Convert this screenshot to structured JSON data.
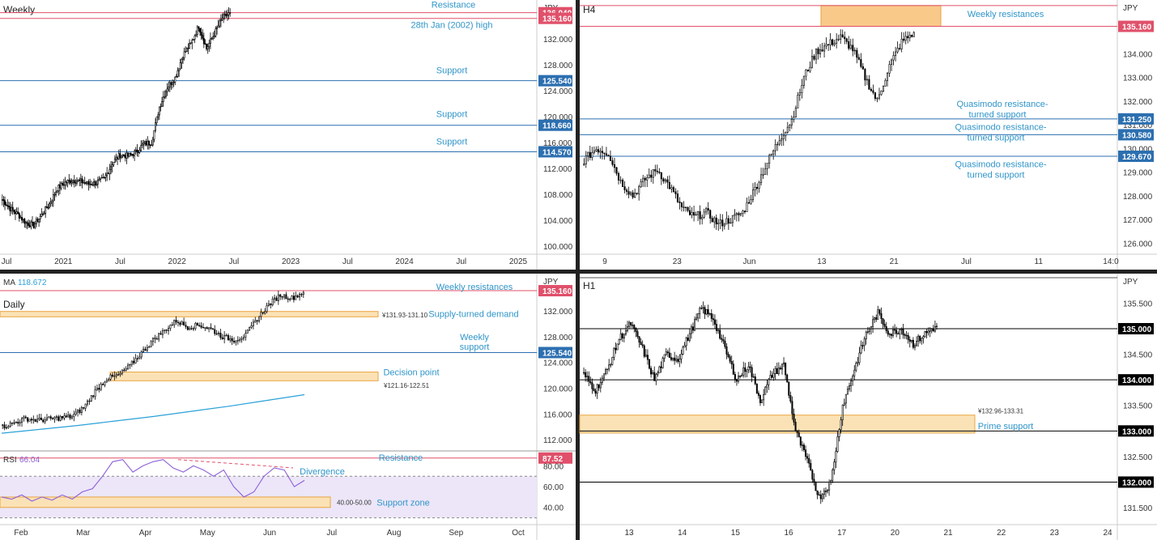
{
  "colors": {
    "up": "#ffffff",
    "down": "#000000",
    "wick": "#000000",
    "support": "#2c6fb0",
    "resistance": "#e0506a",
    "label": "#2f95c9",
    "zone_fill": "#fbe2b6",
    "zone_stroke": "#e9a440",
    "zone_fill_dark": "#f9c98a",
    "ma": "#29a0d8",
    "rsi": "#8c5fd6",
    "rsi_band": "#ece6f8",
    "axis_text": "#333333",
    "divider": "#222222"
  },
  "chart_data": [
    {
      "id": "weekly",
      "type": "candlestick",
      "title": "Weekly",
      "currency": "JPY",
      "ylim": [
        99,
        137
      ],
      "y_ticks": [
        "132.000",
        "128.000",
        "124.000",
        "120.000",
        "116.000",
        "112.000",
        "108.000",
        "104.000",
        "100.000"
      ],
      "x_ticks": [
        "Jul",
        "2021",
        "Jul",
        "2022",
        "Jul",
        "2023",
        "Jul",
        "2024",
        "Jul",
        "2025"
      ],
      "price_path": [
        107.2,
        105.8,
        104.9,
        103.6,
        103.2,
        104.8,
        106.5,
        108.9,
        109.8,
        110.2,
        110.0,
        109.6,
        109.8,
        110.4,
        112.8,
        114.1,
        113.9,
        114.5,
        115.8,
        116.0,
        121.5,
        124.5,
        126.0,
        129.5,
        131.2,
        134.0,
        130.5,
        132.8,
        135.2,
        136.0
      ],
      "price_labels": [
        {
          "value": 136.04,
          "text": "136.040",
          "kind": "resistance"
        },
        {
          "value": 135.16,
          "text": "135.160",
          "kind": "resistance"
        },
        {
          "value": 125.54,
          "text": "125.540",
          "kind": "support"
        },
        {
          "value": 118.66,
          "text": "118.660",
          "kind": "support"
        },
        {
          "value": 114.57,
          "text": "114.570",
          "kind": "support"
        }
      ],
      "annotations": [
        {
          "text": "Resistance",
          "value": 136.04
        },
        {
          "text": "28th Jan (2002) high",
          "value": 135.16
        },
        {
          "text": "Support",
          "value": 125.54
        },
        {
          "text": "Support",
          "value": 118.66
        },
        {
          "text": "Support",
          "value": 114.57
        }
      ]
    },
    {
      "id": "h4",
      "type": "candlestick",
      "title": "H4",
      "currency": "JPY",
      "ylim": [
        125.6,
        136.0
      ],
      "y_ticks": [
        "134.000",
        "133.000",
        "132.000",
        "131.000",
        "130.000",
        "129.000",
        "128.000",
        "127.000",
        "126.000"
      ],
      "x_ticks": [
        "9",
        "23",
        "Jun",
        "13",
        "21",
        "Jul",
        "11",
        "14:0"
      ],
      "price_path": [
        129.5,
        130.0,
        129.8,
        128.6,
        128.0,
        128.7,
        129.1,
        128.4,
        127.5,
        127.1,
        127.3,
        126.8,
        127.0,
        127.3,
        128.3,
        129.4,
        130.4,
        131.2,
        133.0,
        134.1,
        134.4,
        134.7,
        134.2,
        133.0,
        132.0,
        133.5,
        134.5,
        134.9
      ],
      "price_labels": [
        {
          "value": 135.16,
          "text": "135.160",
          "kind": "resistance"
        },
        {
          "value": 131.25,
          "text": "131.250",
          "kind": "support"
        },
        {
          "value": 130.58,
          "text": "130.580",
          "kind": "support"
        },
        {
          "value": 129.67,
          "text": "129.670",
          "kind": "support"
        }
      ],
      "zones": [
        {
          "from": 135.16,
          "to": 136.04
        }
      ],
      "annotations": [
        {
          "text": "Weekly resistances",
          "value": 135.7
        },
        {
          "text": "Quasimodo resistance-",
          "value": 131.9
        },
        {
          "text": "turned support",
          "value": 131.45
        },
        {
          "text": "Quasimodo resistance-",
          "value": 130.92
        },
        {
          "text": "turned support",
          "value": 130.47
        },
        {
          "text": "Quasimodo resistance-",
          "value": 129.35
        },
        {
          "text": "turned support",
          "value": 128.9
        }
      ]
    },
    {
      "id": "daily",
      "type": "candlestick",
      "title": "Daily",
      "currency": "JPY",
      "ma_label": "MA",
      "ma_value": "118.672",
      "ylim": [
        110.5,
        136.8
      ],
      "y_ticks": [
        "132.000",
        "128.000",
        "124.000",
        "120.000",
        "116.000",
        "112.000"
      ],
      "x_ticks": [
        "Feb",
        "Mar",
        "Apr",
        "May",
        "Jun",
        "Jul",
        "Aug",
        "Sep",
        "Oct"
      ],
      "price_path": [
        114.0,
        114.6,
        115.3,
        115.0,
        115.2,
        115.4,
        115.6,
        117.0,
        119.5,
        121.5,
        122.0,
        123.5,
        125.5,
        127.5,
        129.0,
        130.5,
        129.5,
        129.8,
        129.2,
        128.0,
        127.5,
        128.2,
        130.8,
        133.0,
        134.5,
        134.0,
        134.9
      ],
      "ma_path": [
        113.0,
        113.6,
        114.2,
        114.9,
        115.6,
        116.4,
        117.2,
        118.1,
        119.0
      ],
      "price_labels": [
        {
          "value": 135.16,
          "text": "135.160",
          "kind": "resistance"
        },
        {
          "value": 125.54,
          "text": "125.540",
          "kind": "support"
        }
      ],
      "zones": [
        {
          "from": 131.1,
          "to": 131.93,
          "label": "¥131.93-131.10"
        },
        {
          "from": 121.16,
          "to": 122.51,
          "label": "¥121.16-122.51"
        }
      ],
      "annotations": [
        {
          "text": "Weekly resistances",
          "value": 135.8
        },
        {
          "text": "Supply-turned demand",
          "value": 131.6
        },
        {
          "text": "Weekly",
          "value": 128.0
        },
        {
          "text": "support",
          "value": 126.5
        },
        {
          "text": "Decision point",
          "value": 122.5
        }
      ]
    },
    {
      "id": "rsi",
      "type": "line",
      "title": "RSI",
      "value_label": "66.04",
      "ylim": [
        25,
        92
      ],
      "y_ticks": [
        "80.00",
        "60.00",
        "40.00"
      ],
      "levels": [
        70,
        30
      ],
      "resistance": {
        "value": 87.52,
        "text": "87.52"
      },
      "zone": {
        "from": 40,
        "to": 50,
        "label": "40.00-50.00"
      },
      "values": [
        50,
        48,
        52,
        46,
        50,
        47,
        52,
        48,
        55,
        58,
        70,
        84,
        86,
        74,
        80,
        84,
        86,
        78,
        74,
        80,
        76,
        70,
        76,
        60,
        50,
        55,
        70,
        78,
        76,
        60,
        66
      ],
      "annotations": [
        {
          "text": "Divergence",
          "value": 75
        },
        {
          "text": "Resistance",
          "value": 88
        },
        {
          "text": "Support zone",
          "value": 45
        }
      ]
    },
    {
      "id": "h1",
      "type": "candlestick",
      "title": "H1",
      "currency": "JPY",
      "ylim": [
        131.2,
        135.95
      ],
      "y_ticks": [
        "135.500",
        "134.500",
        "133.500",
        "132.500",
        "131.500"
      ],
      "x_ticks": [
        "13",
        "14",
        "15",
        "16",
        "17",
        "20",
        "21",
        "22",
        "23",
        "24"
      ],
      "price_path": [
        134.1,
        133.8,
        134.2,
        134.8,
        135.1,
        134.6,
        134.0,
        134.5,
        134.4,
        134.9,
        135.4,
        135.2,
        134.6,
        134.0,
        134.3,
        133.6,
        134.1,
        134.3,
        133.0,
        132.4,
        131.7,
        132.0,
        133.5,
        134.2,
        134.9,
        135.3,
        134.9,
        135.0,
        134.7,
        134.9,
        135.05
      ],
      "price_labels": [
        {
          "value": 135.0,
          "text": "135.000",
          "kind": "neutral"
        },
        {
          "value": 134.0,
          "text": "134.000",
          "kind": "neutral"
        },
        {
          "value": 133.0,
          "text": "133.000",
          "kind": "neutral"
        },
        {
          "value": 132.0,
          "text": "132.000",
          "kind": "neutral"
        }
      ],
      "zones": [
        {
          "from": 132.96,
          "to": 133.31,
          "label": "¥132.96-133.31"
        }
      ],
      "annotations": [
        {
          "text": "Prime support",
          "value": 133.1
        }
      ]
    }
  ]
}
